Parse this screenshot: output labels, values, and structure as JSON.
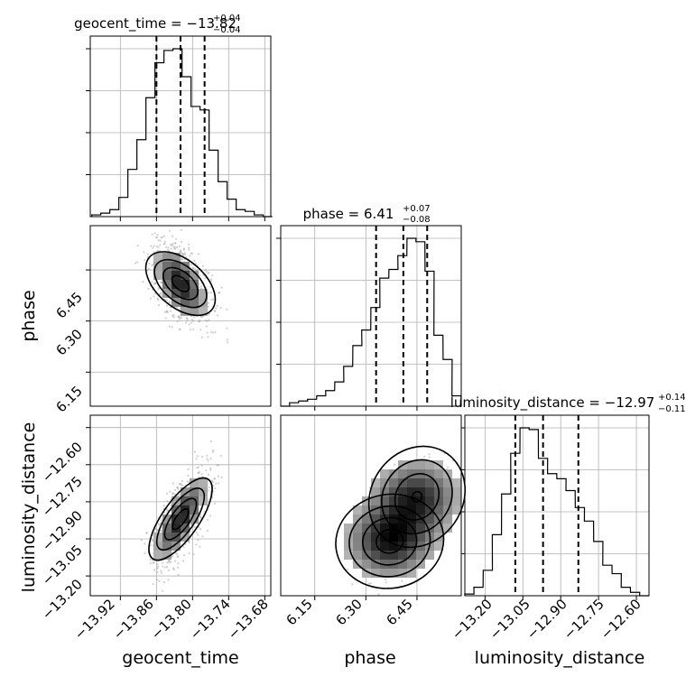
{
  "titles": [
    {
      "param": "geocent_time",
      "value": "−13.82",
      "plus": "+0.04",
      "minus": "−0.04"
    },
    {
      "param": "phase",
      "value": "6.41",
      "plus": "+0.07",
      "minus": "−0.08"
    },
    {
      "param": "luminosity_distance",
      "value": "−12.97",
      "plus": "+0.14",
      "minus": "−0.11"
    }
  ],
  "axis_labels": {
    "x": [
      "geocent_time",
      "phase",
      "luminosity_distance"
    ],
    "y": [
      "phase",
      "luminosity_distance"
    ]
  },
  "ticks": {
    "geocent_time": [
      "−13.92",
      "−13.86",
      "−13.80",
      "−13.74",
      "−13.68"
    ],
    "phase": [
      "6.15",
      "6.30",
      "6.45"
    ],
    "luminosity_distance": [
      "−13.20",
      "−13.05",
      "−12.90",
      "−12.75",
      "−12.60"
    ]
  },
  "colors": {
    "ink": "#000000",
    "grid": "#b0b0b0",
    "scatter": "#9a9a9a"
  },
  "chart_data": {
    "type": "corner",
    "parameters": [
      "geocent_time",
      "phase",
      "luminosity_distance"
    ],
    "ranges": {
      "geocent_time": [
        -13.97,
        -13.67
      ],
      "phase": [
        6.05,
        6.58
      ],
      "luminosity_distance": [
        -13.28,
        -12.55
      ]
    },
    "quantiles": {
      "geocent_time": [
        -13.86,
        -13.82,
        -13.78
      ],
      "phase": [
        6.33,
        6.41,
        6.48
      ],
      "luminosity_distance": [
        -13.08,
        -12.97,
        -12.83
      ]
    },
    "histograms": [
      {
        "parameter": "geocent_time",
        "bin_centers": [
          -13.96,
          -13.945,
          -13.93,
          -13.915,
          -13.9,
          -13.885,
          -13.87,
          -13.855,
          -13.84,
          -13.825,
          -13.81,
          -13.795,
          -13.78,
          -13.765,
          -13.75,
          -13.735,
          -13.72,
          -13.705,
          -13.69,
          -13.675
        ],
        "counts": [
          1,
          2,
          4,
          11,
          27,
          44,
          68,
          88,
          95,
          96,
          80,
          63,
          61,
          38,
          20,
          10,
          4,
          3,
          1,
          0
        ]
      },
      {
        "parameter": "phase",
        "bin_centers": [
          6.063,
          6.089,
          6.116,
          6.142,
          6.169,
          6.195,
          6.222,
          6.248,
          6.275,
          6.301,
          6.328,
          6.354,
          6.381,
          6.407,
          6.434,
          6.46,
          6.487,
          6.513,
          6.54,
          6.566
        ],
        "counts": [
          0,
          2,
          3,
          4,
          6,
          9,
          14,
          23,
          35,
          44,
          57,
          74,
          79,
          87,
          97,
          95,
          78,
          41,
          27,
          6
        ]
      },
      {
        "parameter": "luminosity_distance",
        "bin_centers": [
          -13.262,
          -13.226,
          -13.189,
          -13.153,
          -13.116,
          -13.08,
          -13.043,
          -13.007,
          -12.97,
          -12.934,
          -12.897,
          -12.861,
          -12.824,
          -12.788,
          -12.751,
          -12.715,
          -12.678,
          -12.642,
          -12.605,
          -12.569
        ],
        "counts": [
          1,
          5,
          15,
          36,
          60,
          84,
          99,
          98,
          81,
          72,
          69,
          62,
          52,
          44,
          32,
          18,
          13,
          5,
          2,
          0
        ]
      }
    ],
    "pairs": [
      {
        "x": "geocent_time",
        "y": "phase",
        "center": [
          -13.82,
          6.41
        ],
        "sd": [
          0.025,
          0.06
        ],
        "corr": -0.5,
        "contour_levels": [
          "0.5",
          "1",
          "1.5",
          "2"
        ]
      },
      {
        "x": "geocent_time",
        "y": "luminosity_distance",
        "center": [
          -13.82,
          -12.97
        ],
        "sd": [
          0.025,
          0.1
        ],
        "corr": 0.75,
        "contour_levels": [
          "0.5",
          "1",
          "1.5",
          "2"
        ]
      },
      {
        "x": "phase",
        "y": "luminosity_distance",
        "modes": [
          [
            6.37,
            -13.06
          ],
          [
            6.45,
            -12.88
          ]
        ],
        "contour_levels": [
          "0.5",
          "1",
          "1.5",
          "2"
        ]
      }
    ]
  }
}
